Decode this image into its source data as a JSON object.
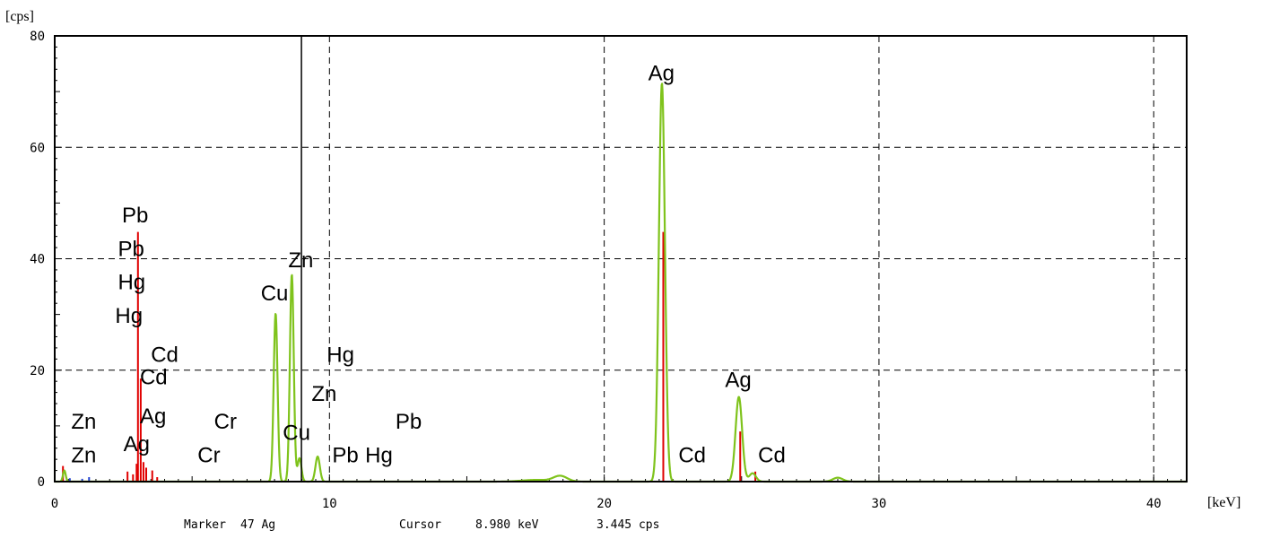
{
  "chart_data": {
    "type": "line",
    "x_unit": "[keV]",
    "y_unit": "[cps]",
    "xlim": [
      0,
      41.2
    ],
    "ylim": [
      0,
      80
    ],
    "x_ticks": [
      0,
      10,
      20,
      30,
      40
    ],
    "y_ticks": [
      0,
      20,
      40,
      60,
      80
    ],
    "grid": true,
    "colors": {
      "spectrum": "#7fc31c",
      "lines": "#e00000",
      "blue": "#1f3fd0",
      "cursor": "#000000"
    },
    "spectrum_peaks": [
      {
        "center": 0.35,
        "height": 2.0,
        "sigma": 0.05
      },
      {
        "center": 8.04,
        "height": 30.2,
        "sigma": 0.07
      },
      {
        "center": 8.63,
        "height": 37.2,
        "sigma": 0.07
      },
      {
        "center": 8.91,
        "height": 4.2,
        "sigma": 0.07
      },
      {
        "center": 9.57,
        "height": 4.5,
        "sigma": 0.08
      },
      {
        "center": 17.5,
        "height": 0.3,
        "sigma": 0.5
      },
      {
        "center": 18.4,
        "height": 1.0,
        "sigma": 0.25
      },
      {
        "center": 22.1,
        "height": 71.5,
        "sigma": 0.11
      },
      {
        "center": 24.9,
        "height": 15.2,
        "sigma": 0.12
      },
      {
        "center": 25.4,
        "height": 1.5,
        "sigma": 0.12
      },
      {
        "center": 28.5,
        "height": 0.7,
        "sigma": 0.18
      }
    ],
    "line_markers": [
      {
        "x": 0.3,
        "y": 2.8,
        "color": "lines"
      },
      {
        "x": 2.65,
        "y": 1.8,
        "color": "lines"
      },
      {
        "x": 2.85,
        "y": 1.3,
        "color": "lines"
      },
      {
        "x": 2.98,
        "y": 3.2,
        "color": "lines"
      },
      {
        "x": 3.03,
        "y": 44.8,
        "color": "lines"
      },
      {
        "x": 3.13,
        "y": 18.5,
        "color": "lines"
      },
      {
        "x": 3.23,
        "y": 3.5,
        "color": "lines"
      },
      {
        "x": 3.33,
        "y": 2.5,
        "color": "lines"
      },
      {
        "x": 3.55,
        "y": 2.0,
        "color": "lines"
      },
      {
        "x": 3.73,
        "y": 0.8,
        "color": "lines"
      },
      {
        "x": 22.15,
        "y": 44.8,
        "color": "lines"
      },
      {
        "x": 24.95,
        "y": 9.0,
        "color": "lines"
      },
      {
        "x": 25.5,
        "y": 1.8,
        "color": "lines"
      },
      {
        "x": 0.55,
        "y": 0.6,
        "color": "blue"
      },
      {
        "x": 1.0,
        "y": 0.5,
        "color": "blue"
      },
      {
        "x": 1.25,
        "y": 0.8,
        "color": "blue"
      }
    ],
    "cursor_x": 8.98,
    "annotations": [
      {
        "text": "Pb",
        "x": 2.45,
        "y": 46.5
      },
      {
        "text": "Pb",
        "x": 2.3,
        "y": 40.5
      },
      {
        "text": "Hg",
        "x": 2.3,
        "y": 34.5
      },
      {
        "text": "Hg",
        "x": 2.2,
        "y": 28.5
      },
      {
        "text": "Cd",
        "x": 3.5,
        "y": 21.5
      },
      {
        "text": "Cd",
        "x": 3.1,
        "y": 17.5
      },
      {
        "text": "Ag",
        "x": 3.1,
        "y": 10.5
      },
      {
        "text": "Ag",
        "x": 2.5,
        "y": 5.5
      },
      {
        "text": "Zn",
        "x": 0.6,
        "y": 9.5
      },
      {
        "text": "Zn",
        "x": 0.6,
        "y": 3.5
      },
      {
        "text": "Cr",
        "x": 5.8,
        "y": 9.5
      },
      {
        "text": "Cr",
        "x": 5.2,
        "y": 3.5
      },
      {
        "text": "Zn",
        "x": 8.5,
        "y": 38.5
      },
      {
        "text": "Cu",
        "x": 7.5,
        "y": 32.5
      },
      {
        "text": "Hg",
        "x": 9.9,
        "y": 21.5
      },
      {
        "text": "Zn",
        "x": 9.35,
        "y": 14.5
      },
      {
        "text": "Cu",
        "x": 8.3,
        "y": 7.5
      },
      {
        "text": "Pb",
        "x": 10.1,
        "y": 3.5
      },
      {
        "text": "Hg",
        "x": 11.3,
        "y": 3.5
      },
      {
        "text": "Pb",
        "x": 12.4,
        "y": 9.5
      },
      {
        "text": "Ag",
        "x": 21.6,
        "y": 72.0
      },
      {
        "text": "Ag",
        "x": 24.4,
        "y": 17.0
      },
      {
        "text": "Cd",
        "x": 22.7,
        "y": 3.5
      },
      {
        "text": "Cd",
        "x": 25.6,
        "y": 3.5
      }
    ]
  },
  "status_bar": {
    "marker_label": "Marker",
    "marker_value": "47 Ag",
    "cursor_label": "Cursor",
    "cursor_energy": "8.980 keV",
    "cursor_cps": "3.445 cps"
  }
}
